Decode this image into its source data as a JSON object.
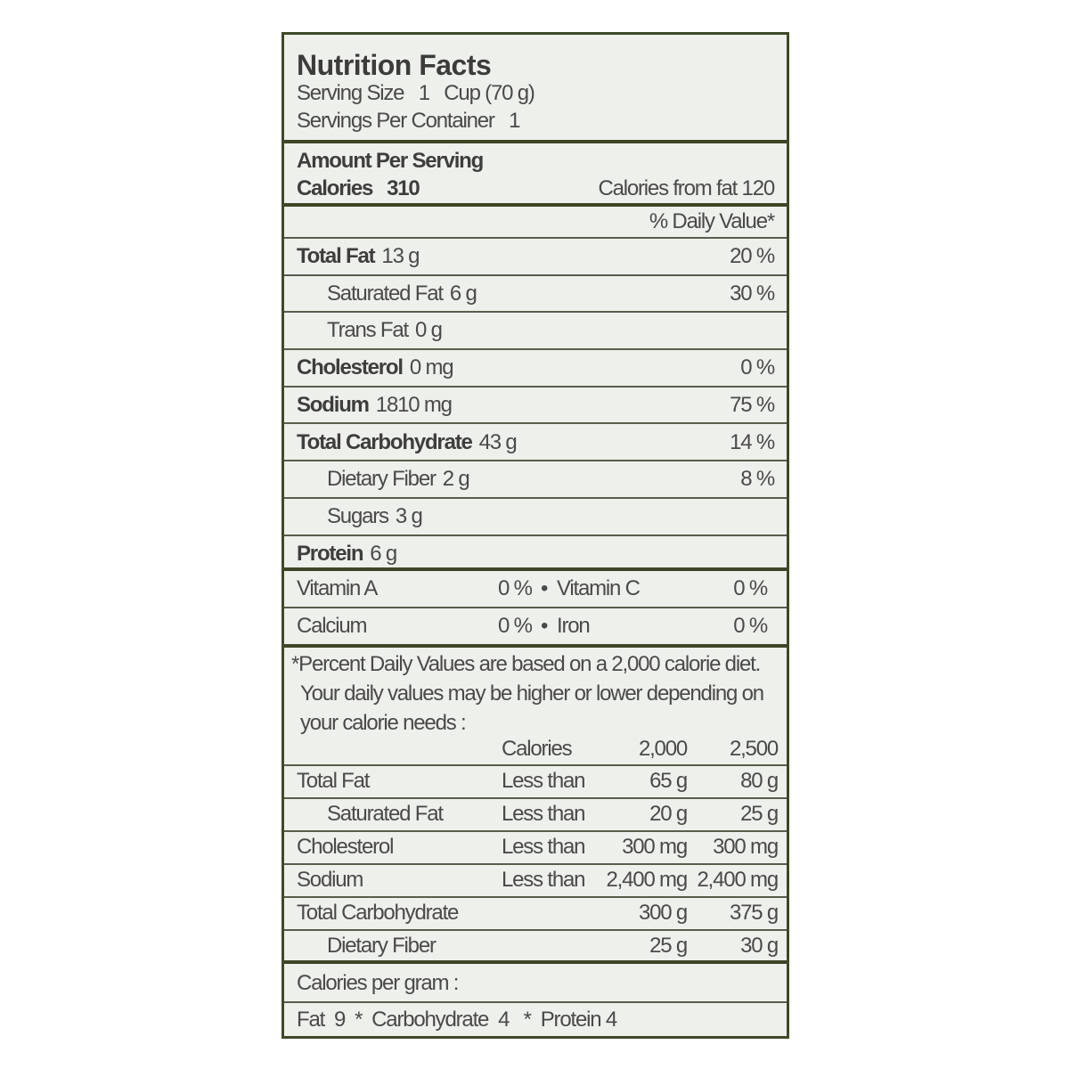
{
  "title": "Nutrition Facts",
  "serving_size": "Serving Size   1   Cup (70 g)",
  "servings_per_container": "Servings Per Container   1",
  "amount_per_serving": "Amount Per Serving",
  "calories_label": "Calories",
  "calories_value": "310",
  "calories_from_fat": "Calories from fat 120",
  "daily_value_header": "% Daily Value*",
  "nutrients": [
    {
      "name": "Total Fat",
      "amount": "13 g",
      "dv": "20 %",
      "bold": true,
      "indent": false
    },
    {
      "name": "Saturated Fat",
      "amount": "6 g",
      "dv": "30 %",
      "bold": false,
      "indent": true
    },
    {
      "name": "Trans Fat",
      "amount": "0 g",
      "dv": "",
      "bold": false,
      "indent": true
    },
    {
      "name": "Cholesterol",
      "amount": "0 mg",
      "dv": "0 %",
      "bold": true,
      "indent": false
    },
    {
      "name": "Sodium",
      "amount": "1810 mg",
      "dv": "75 %",
      "bold": true,
      "indent": false
    },
    {
      "name": "Total Carbohydrate",
      "amount": "43 g",
      "dv": "14 %",
      "bold": true,
      "indent": false
    },
    {
      "name": "Dietary Fiber",
      "amount": "2 g",
      "dv": "8 %",
      "bold": false,
      "indent": true
    },
    {
      "name": "Sugars",
      "amount": "3 g",
      "dv": "",
      "bold": false,
      "indent": true
    },
    {
      "name": "Protein",
      "amount": "6 g",
      "dv": "",
      "bold": true,
      "indent": false
    }
  ],
  "vitamins": [
    {
      "a_name": "Vitamin A",
      "a_dv": "0 %",
      "b_name": "Vitamin C",
      "b_dv": "0 %"
    },
    {
      "a_name": "Calcium",
      "a_dv": "0 %",
      "b_name": "Iron",
      "b_dv": "0 %"
    }
  ],
  "bullet": "•",
  "footnote": [
    "*Percent Daily Values are based on a 2,000 calorie diet.",
    "Your daily values may be higher or lower depending on",
    "your calorie needs :"
  ],
  "reference_table": {
    "header": [
      "",
      "Calories",
      "2,000",
      "2,500"
    ],
    "rows": [
      [
        "Total Fat",
        "Less than",
        "65 g",
        "80 g"
      ],
      [
        "Saturated Fat",
        "Less than",
        "20 g",
        "25 g"
      ],
      [
        "Cholesterol",
        "Less than",
        "300 mg",
        "300 mg"
      ],
      [
        "Sodium",
        "Less than",
        "2,400 mg",
        "2,400 mg"
      ],
      [
        "Total Carbohydrate",
        "",
        "300 g",
        "375 g"
      ],
      [
        "Dietary Fiber",
        "",
        "25 g",
        "30 g"
      ]
    ]
  },
  "calories_per_gram": "Calories per gram :",
  "calories_per_gram_values": "Fat  9  *  Carbohydrate  4   *  Protein 4",
  "colors": {
    "border": "#3d4a26",
    "background": "#eef0ec",
    "text": "#4a4a48"
  }
}
